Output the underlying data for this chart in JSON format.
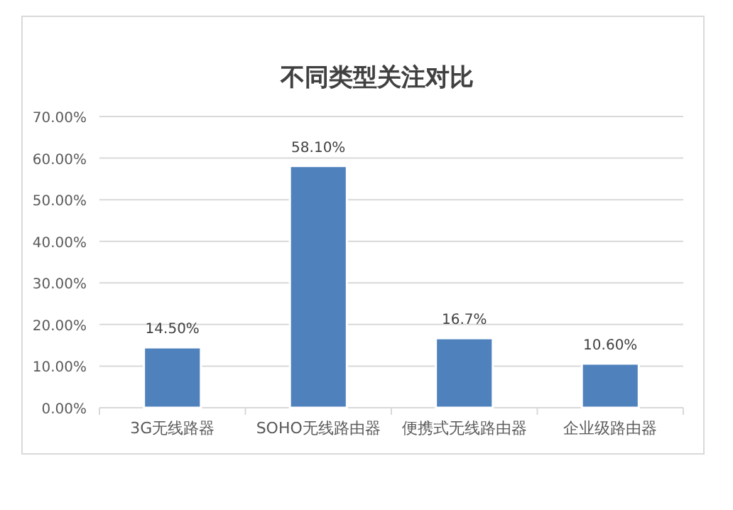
{
  "chart_data": {
    "type": "bar",
    "title": "不同类型关注对比",
    "categories": [
      "3G无线路器",
      "SOHO无线路由器",
      "便携式无线路由器",
      "企业级路由器"
    ],
    "values": [
      14.5,
      58.1,
      16.7,
      10.6
    ],
    "value_labels": [
      "14.50%",
      "58.10%",
      "16.7%",
      "10.60%"
    ],
    "color": "#4f81bd",
    "ylim": [
      0,
      70
    ],
    "yticks": [
      {
        "value": 0,
        "label": "0.00%"
      },
      {
        "value": 10,
        "label": "10.00%"
      },
      {
        "value": 20,
        "label": "20.00%"
      },
      {
        "value": 30,
        "label": "30.00%"
      },
      {
        "value": 40,
        "label": "40.00%"
      },
      {
        "value": 50,
        "label": "50.00%"
      },
      {
        "value": 60,
        "label": "60.00%"
      },
      {
        "value": 70,
        "label": "70.00%"
      }
    ],
    "grid": "y"
  }
}
